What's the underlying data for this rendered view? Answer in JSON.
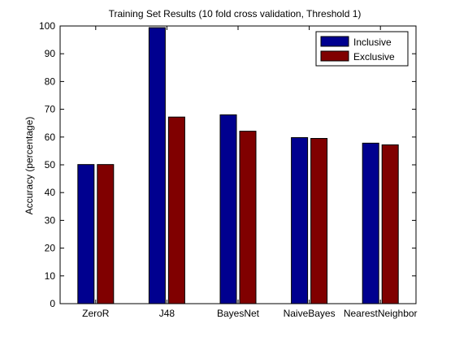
{
  "chart_data": {
    "type": "bar",
    "title": "Training Set Results (10 fold cross validation, Threshold 1)",
    "xlabel": "",
    "ylabel": "Accuracy (percentage)",
    "ylim": [
      0,
      100
    ],
    "yticks": [
      0,
      10,
      20,
      30,
      40,
      50,
      60,
      70,
      80,
      90,
      100
    ],
    "categories": [
      "ZeroR",
      "J48",
      "BayesNet",
      "NaiveBayes",
      "NearestNeighbor"
    ],
    "series": [
      {
        "name": "Inclusive",
        "color": "#00008f",
        "values": [
          50.1,
          99.4,
          68.0,
          59.8,
          57.8
        ]
      },
      {
        "name": "Exclusive",
        "color": "#800000",
        "values": [
          50.1,
          67.2,
          62.1,
          59.5,
          57.2
        ]
      }
    ],
    "legend_position": "top-right",
    "grid": false
  }
}
